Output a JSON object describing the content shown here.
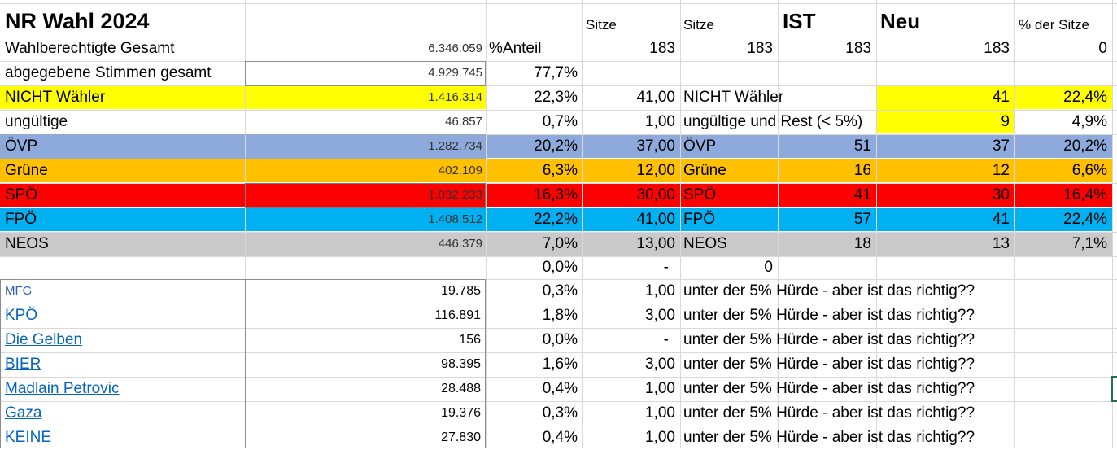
{
  "header": {
    "title": "NR Wahl 2024",
    "sitze_a": "Sitze",
    "sitze_b": "Sitze",
    "ist": "IST",
    "neu": "Neu",
    "pct_sitze": "% der Sitze"
  },
  "row_wahlberechtigte": {
    "label": "Wahlberechtigte Gesamt",
    "value": "6.346.059",
    "anteil_label": "%Anteil",
    "sitze_a": "183",
    "sitze_b": "183",
    "ist": "183",
    "neu": "183",
    "pct": "0"
  },
  "row_abgegeben": {
    "label": "abgegebene Stimmen gesamt",
    "value": "4.929.745",
    "pct": "77,7%"
  },
  "parties": [
    {
      "label": "NICHT Wähler",
      "value": "1.416.314",
      "pct": "22,3%",
      "sitze": "41,00",
      "name2": "NICHT Wähler",
      "ist": "",
      "neu": "41",
      "pct_sitze": "22,4%",
      "color": "#ffff00"
    },
    {
      "label": "ungültige",
      "value": "46.857",
      "pct": "0,7%",
      "sitze": "1,00",
      "name2": "ungültige und Rest (< 5%)",
      "ist": "",
      "neu": "9",
      "pct_sitze": "4,9%",
      "color": "#ffffff"
    },
    {
      "label": "ÖVP",
      "value": "1.282.734",
      "pct": "20,2%",
      "sitze": "37,00",
      "name2": "ÖVP",
      "ist": "51",
      "neu": "37",
      "pct_sitze": "20,2%",
      "color": "#8ea9db"
    },
    {
      "label": "Grüne",
      "value": "402.109",
      "pct": "6,3%",
      "sitze": "12,00",
      "name2": "Grüne",
      "ist": "16",
      "neu": "12",
      "pct_sitze": "6,6%",
      "color": "#ffc000"
    },
    {
      "label": "SPÖ",
      "value": "1.032.233",
      "pct": "16,3%",
      "sitze": "30,00",
      "name2": "SPÖ",
      "ist": "41",
      "neu": "30",
      "pct_sitze": "16,4%",
      "color": "#ff0000"
    },
    {
      "label": "FPÖ",
      "value": "1.408.512",
      "pct": "22,2%",
      "sitze": "41,00",
      "name2": "FPÖ",
      "ist": "57",
      "neu": "41",
      "pct_sitze": "22,4%",
      "color": "#00b0f0"
    },
    {
      "label": "NEOS",
      "value": "446.379",
      "pct": "7,0%",
      "sitze": "13,00",
      "name2": "NEOS",
      "ist": "18",
      "neu": "13",
      "pct_sitze": "7,1%",
      "color": "#c9c9c9"
    }
  ],
  "row_empty": {
    "pct": "0,0%",
    "sitze": "-",
    "ist": "0"
  },
  "small_parties": [
    {
      "label": "MFG",
      "value": "19.785",
      "pct": "0,3%",
      "sitze": "1,00",
      "note": "unter der 5% Hürde - aber ist das richtig??"
    },
    {
      "label": "KPÖ",
      "value": "116.891",
      "pct": "1,8%",
      "sitze": "3,00",
      "note": "unter der 5% Hürde - aber ist das richtig??"
    },
    {
      "label": "Die Gelben",
      "value": "156",
      "pct": "0,0%",
      "sitze": "-",
      "note": "unter der 5% Hürde - aber ist das richtig??"
    },
    {
      "label": "BIER",
      "value": "98.395",
      "pct": "1,6%",
      "sitze": "3,00",
      "note": "unter der 5% Hürde - aber ist das richtig??"
    },
    {
      "label": "Madlain Petrovic",
      "value": "28.488",
      "pct": "0,4%",
      "sitze": "1,00",
      "note": "unter der 5% Hürde - aber ist das richtig??"
    },
    {
      "label": "Gaza",
      "value": "19.376",
      "pct": "0,3%",
      "sitze": "1,00",
      "note": "unter der 5% Hürde - aber ist das richtig??"
    },
    {
      "label": "KEINE",
      "value": "27.830",
      "pct": "0,4%",
      "sitze": "1,00",
      "note": "unter der 5% Hürde - aber ist das richtig??"
    }
  ],
  "colors": {
    "link": "#0563c1",
    "grid": "#d9d9d9",
    "selection": "#217346"
  }
}
